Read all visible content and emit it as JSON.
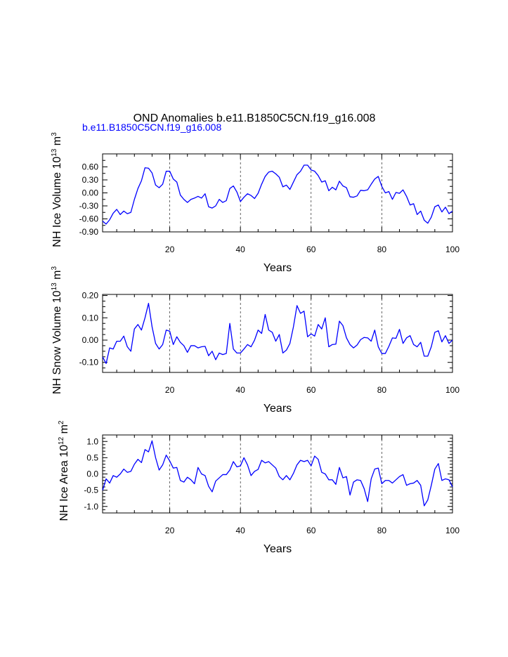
{
  "title": "OND Anomalies b.e11.B1850C5CN.f19_g16.008",
  "subtitle": "b.e11.B1850C5CN.f19_g16.008",
  "colors": {
    "series": "#0000ff",
    "axis": "#000000",
    "grid": "#000000"
  },
  "chart_data": [
    {
      "type": "line",
      "ylabel_main": "NH Ice Volume 10",
      "ylabel_sup": "13",
      "ylabel_unit": " m",
      "ylabel_unit_sup": "3",
      "xlabel": "Years",
      "xlim": [
        1,
        100
      ],
      "ylim": [
        -0.9,
        0.9
      ],
      "yticks": [
        -0.9,
        -0.6,
        -0.3,
        0.0,
        0.3,
        0.6
      ],
      "ytick_labels": [
        "-0.90",
        "-0.60",
        "-0.30",
        "0.00",
        "0.30",
        "0.60"
      ],
      "yminor": [
        -0.75,
        -0.45,
        -0.15,
        0.15,
        0.45,
        0.75
      ],
      "xticks": [
        20,
        40,
        60,
        80,
        100
      ],
      "xtick_labels": [
        "20",
        "40",
        "60",
        "80",
        "100"
      ],
      "vlines": [
        20,
        40,
        60,
        80
      ],
      "series": [
        {
          "name": "b.e11.B1850C5CN.f19_g16.008",
          "values": [
            -0.65,
            -0.72,
            -0.62,
            -0.47,
            -0.38,
            -0.5,
            -0.42,
            -0.48,
            -0.45,
            -0.15,
            0.1,
            0.28,
            0.58,
            0.57,
            0.46,
            0.18,
            0.12,
            0.2,
            0.5,
            0.5,
            0.32,
            0.25,
            -0.05,
            -0.15,
            -0.22,
            -0.15,
            -0.12,
            -0.08,
            -0.12,
            -0.02,
            -0.32,
            -0.35,
            -0.3,
            -0.15,
            -0.22,
            -0.18,
            0.1,
            0.16,
            0.02,
            -0.2,
            -0.1,
            -0.02,
            -0.06,
            -0.13,
            -0.01,
            0.2,
            0.38,
            0.48,
            0.5,
            0.44,
            0.36,
            0.14,
            0.18,
            0.08,
            0.25,
            0.42,
            0.5,
            0.64,
            0.64,
            0.53,
            0.5,
            0.4,
            0.25,
            0.28,
            0.05,
            0.13,
            0.07,
            0.27,
            0.16,
            0.12,
            -0.09,
            -0.1,
            -0.07,
            0.06,
            0.05,
            0.07,
            0.2,
            0.32,
            0.38,
            0.15,
            0.0,
            0.03,
            -0.15,
            0.01,
            -0.01,
            0.07,
            -0.08,
            -0.28,
            -0.25,
            -0.5,
            -0.42,
            -0.63,
            -0.7,
            -0.56,
            -0.32,
            -0.28,
            -0.44,
            -0.33,
            -0.48,
            -0.42
          ]
        }
      ]
    },
    {
      "type": "line",
      "ylabel_main": "NH Snow Volume 10",
      "ylabel_sup": "13",
      "ylabel_unit": " m",
      "ylabel_unit_sup": "3",
      "xlabel": "Years",
      "xlim": [
        1,
        100
      ],
      "ylim": [
        -0.145,
        0.205
      ],
      "yticks": [
        -0.1,
        0.0,
        0.1,
        0.2
      ],
      "ytick_labels": [
        "-0.10",
        "0.00",
        "0.10",
        "0.20"
      ],
      "yminor": [
        -0.125,
        -0.075,
        -0.05,
        -0.025,
        0.025,
        0.05,
        0.075,
        0.125,
        0.15,
        0.175
      ],
      "xticks": [
        20,
        40,
        60,
        80,
        100
      ],
      "xtick_labels": [
        "20",
        "40",
        "60",
        "80",
        "100"
      ],
      "vlines": [
        20,
        40,
        60,
        80
      ],
      "series": [
        {
          "name": "b.e11.B1850C5CN.f19_g16.008",
          "values": [
            -0.075,
            -0.105,
            -0.035,
            -0.04,
            -0.005,
            -0.005,
            0.018,
            -0.03,
            -0.05,
            0.05,
            0.07,
            0.045,
            0.1,
            0.165,
            0.06,
            -0.015,
            -0.04,
            -0.02,
            0.045,
            0.04,
            -0.02,
            0.015,
            -0.01,
            -0.025,
            -0.055,
            -0.025,
            -0.025,
            -0.035,
            -0.03,
            -0.028,
            -0.07,
            -0.05,
            -0.088,
            -0.058,
            -0.065,
            -0.06,
            0.075,
            -0.04,
            -0.058,
            -0.058,
            -0.04,
            -0.02,
            -0.03,
            0.0,
            0.045,
            0.03,
            0.115,
            0.045,
            0.035,
            -0.005,
            0.025,
            -0.058,
            -0.045,
            -0.015,
            0.06,
            0.155,
            0.12,
            0.13,
            0.015,
            0.028,
            0.018,
            0.07,
            0.05,
            0.1,
            -0.03,
            -0.02,
            -0.018,
            0.085,
            0.065,
            0.01,
            -0.02,
            -0.035,
            -0.022,
            0.002,
            0.012,
            0.01,
            -0.005,
            0.045,
            -0.03,
            -0.06,
            -0.06,
            -0.028,
            0.01,
            0.008,
            0.048,
            -0.015,
            0.01,
            0.02,
            -0.02,
            -0.03,
            -0.01,
            -0.072,
            -0.072,
            -0.03,
            0.035,
            0.042,
            -0.008,
            0.02,
            -0.015,
            0.0
          ]
        }
      ]
    },
    {
      "type": "line",
      "ylabel_main": "NH Ice Area 10",
      "ylabel_sup": "12",
      "ylabel_unit": " m",
      "ylabel_unit_sup": "2",
      "xlabel": "Years",
      "xlim": [
        1,
        100
      ],
      "ylim": [
        -1.2,
        1.2
      ],
      "yticks": [
        -1.0,
        -0.5,
        0.0,
        0.5,
        1.0
      ],
      "ytick_labels": [
        "-1.0",
        "-0.5",
        "0.0",
        "0.5",
        "1.0"
      ],
      "yminor": [
        -0.9,
        -0.8,
        -0.7,
        -0.6,
        -0.4,
        -0.3,
        -0.2,
        -0.1,
        0.1,
        0.2,
        0.3,
        0.4,
        0.6,
        0.7,
        0.8,
        0.9,
        -1.1,
        1.1
      ],
      "xticks": [
        20,
        40,
        60,
        80,
        100
      ],
      "xtick_labels": [
        "20",
        "40",
        "60",
        "80",
        "100"
      ],
      "vlines": [
        20,
        40,
        60,
        80
      ],
      "series": [
        {
          "name": "b.e11.B1850C5CN.f19_g16.008",
          "values": [
            -0.5,
            -0.15,
            -0.28,
            -0.05,
            -0.1,
            0.0,
            0.15,
            0.05,
            0.08,
            0.3,
            0.45,
            0.35,
            0.75,
            0.68,
            1.02,
            0.5,
            0.12,
            0.28,
            0.58,
            0.4,
            0.18,
            0.2,
            -0.2,
            -0.25,
            -0.1,
            -0.18,
            -0.3,
            0.2,
            0.0,
            -0.05,
            -0.38,
            -0.55,
            -0.22,
            -0.12,
            -0.02,
            -0.02,
            0.12,
            0.38,
            0.22,
            0.25,
            0.5,
            0.28,
            -0.05,
            0.08,
            0.14,
            0.42,
            0.34,
            0.38,
            0.28,
            0.18,
            -0.08,
            -0.18,
            -0.05,
            -0.18,
            0.02,
            0.28,
            0.42,
            0.38,
            0.42,
            0.25,
            0.55,
            0.45,
            0.05,
            0.0,
            -0.18,
            -0.18,
            -0.32,
            0.2,
            -0.12,
            -0.08,
            -0.65,
            -0.25,
            -0.18,
            -0.2,
            -0.45,
            -0.85,
            -0.15,
            0.15,
            0.18,
            -0.3,
            -0.2,
            -0.2,
            -0.28,
            -0.18,
            -0.08,
            -0.02,
            -0.35,
            -0.3,
            -0.28,
            -0.2,
            -0.35,
            -0.98,
            -0.8,
            -0.35,
            0.15,
            0.32,
            -0.2,
            -0.15,
            -0.18,
            -0.4
          ]
        }
      ]
    }
  ]
}
